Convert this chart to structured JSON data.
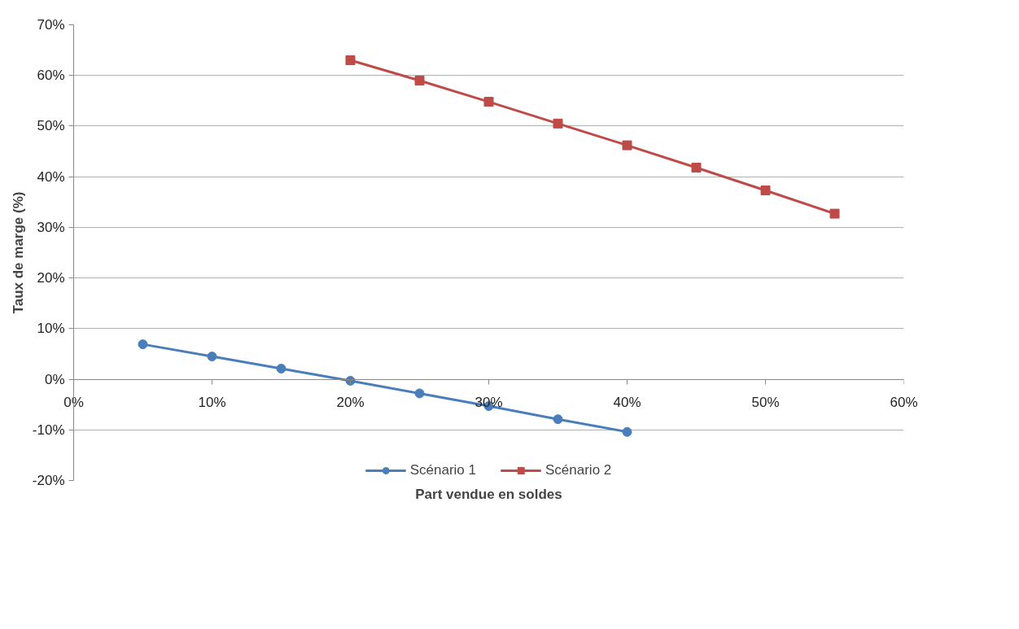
{
  "chart_data": {
    "type": "line",
    "xlabel": "Part vendue en soldes",
    "ylabel": "Taux de marge (%)",
    "x": [
      5,
      10,
      15,
      20,
      25,
      30,
      35,
      40,
      45,
      50,
      55
    ],
    "series": [
      {
        "name": "Scénario 1",
        "color": "#4a7ebb",
        "marker": "circle",
        "values": [
          6.9,
          4.5,
          2.1,
          -0.3,
          -2.8,
          -5.3,
          -7.9,
          -10.4,
          null,
          null,
          null
        ]
      },
      {
        "name": "Scénario 2",
        "color": "#be4b48",
        "marker": "square",
        "values": [
          null,
          null,
          null,
          63.0,
          59.0,
          54.8,
          50.5,
          46.2,
          41.8,
          37.3,
          32.7
        ]
      }
    ],
    "xlim": [
      0,
      60
    ],
    "ylim": [
      -20,
      70
    ],
    "xticks": [
      {
        "value": 0,
        "label": "0%"
      },
      {
        "value": 10,
        "label": "10%"
      },
      {
        "value": 20,
        "label": "20%"
      },
      {
        "value": 30,
        "label": "30%"
      },
      {
        "value": 40,
        "label": "40%"
      },
      {
        "value": 50,
        "label": "50%"
      },
      {
        "value": 60,
        "label": "60%"
      }
    ],
    "yticks": [
      {
        "value": -20,
        "label": "-20%"
      },
      {
        "value": -10,
        "label": "-10%"
      },
      {
        "value": 0,
        "label": "0%"
      },
      {
        "value": 10,
        "label": "10%"
      },
      {
        "value": 20,
        "label": "20%"
      },
      {
        "value": 30,
        "label": "30%"
      },
      {
        "value": 40,
        "label": "40%"
      },
      {
        "value": 50,
        "label": "50%"
      },
      {
        "value": 60,
        "label": "60%"
      },
      {
        "value": 70,
        "label": "70%"
      }
    ],
    "grid": "y",
    "legend": "bottom",
    "line_style": "solid"
  }
}
